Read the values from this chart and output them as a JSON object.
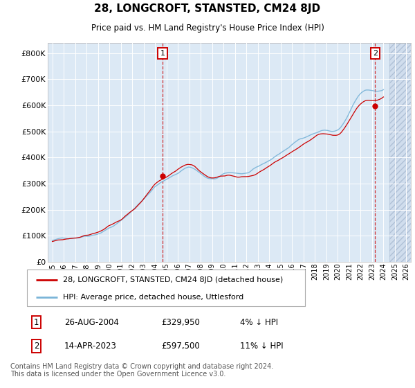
{
  "title": "28, LONGCROFT, STANSTED, CM24 8JD",
  "subtitle": "Price paid vs. HM Land Registry's House Price Index (HPI)",
  "ylabel_ticks": [
    "£0",
    "£100K",
    "£200K",
    "£300K",
    "£400K",
    "£500K",
    "£600K",
    "£700K",
    "£800K"
  ],
  "ytick_vals": [
    0,
    100000,
    200000,
    300000,
    400000,
    500000,
    600000,
    700000,
    800000
  ],
  "ylim": [
    0,
    840000
  ],
  "xlim_start": 1994.6,
  "xlim_end": 2026.4,
  "hpi_color": "#7ab4d8",
  "price_color": "#cc0000",
  "bg_color": "#dce9f5",
  "legend_label_red": "28, LONGCROFT, STANSTED, CM24 8JD (detached house)",
  "legend_label_blue": "HPI: Average price, detached house, Uttlesford",
  "transaction1_date": "26-AUG-2004",
  "transaction1_price": "£329,950",
  "transaction1_hpi": "4% ↓ HPI",
  "transaction2_date": "14-APR-2023",
  "transaction2_price": "£597,500",
  "transaction2_hpi": "11% ↓ HPI",
  "footer": "Contains HM Land Registry data © Crown copyright and database right 2024.\nThis data is licensed under the Open Government Licence v3.0.",
  "trend_years": [
    1995.0,
    1996.0,
    1997.0,
    1998.0,
    1999.0,
    2000.0,
    2001.0,
    2002.0,
    2003.0,
    2004.0,
    2005.0,
    2006.0,
    2007.0,
    2008.0,
    2009.0,
    2010.0,
    2011.0,
    2012.0,
    2013.0,
    2014.0,
    2015.0,
    2016.0,
    2017.0,
    2018.0,
    2019.0,
    2020.0,
    2021.0,
    2022.0,
    2023.0,
    2024.0
  ],
  "hpi_trend": [
    82000,
    88000,
    97000,
    108000,
    122000,
    145000,
    170000,
    210000,
    255000,
    305000,
    330000,
    355000,
    380000,
    355000,
    330000,
    345000,
    350000,
    350000,
    365000,
    390000,
    420000,
    450000,
    480000,
    500000,
    510000,
    510000,
    570000,
    640000,
    650000,
    660000
  ],
  "price_trend": [
    78000,
    84000,
    93000,
    103000,
    117000,
    139000,
    163000,
    201000,
    244000,
    292000,
    316000,
    340000,
    364000,
    340000,
    316000,
    330000,
    335000,
    335000,
    349000,
    373000,
    402000,
    431000,
    460000,
    479000,
    488000,
    488000,
    546000,
    613000,
    623000,
    632000
  ],
  "future_start": 2024.5,
  "marker1_x": 2004.65,
  "marker1_y": 329950,
  "marker2_x": 2023.28,
  "marker2_y": 597500,
  "noise_seed_hpi": 42,
  "noise_seed_price": 99,
  "noise_scale": 12000,
  "months_per_year": 12
}
